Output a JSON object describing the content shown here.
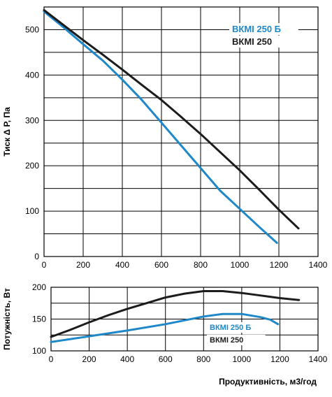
{
  "colors": {
    "blue": "#1e88c8",
    "black": "#1c1c1c"
  },
  "chart_data": [
    {
      "type": "line",
      "ylabel": "Тиск Δ Р, Па",
      "xlabel": "",
      "xlim": [
        0,
        1400
      ],
      "ylim": [
        0,
        550
      ],
      "x_ticks": [
        "0",
        "200",
        "400",
        "600",
        "800",
        "1000",
        "1200",
        "1400"
      ],
      "y_ticks": [
        "0",
        "100",
        "200",
        "300",
        "400",
        "500"
      ],
      "grid": true,
      "legend_position": "top-right",
      "series": [
        {
          "name": "ВКМІ 250 Б",
          "color": "#1e88c8",
          "x": [
            0,
            100,
            200,
            300,
            400,
            500,
            600,
            700,
            800,
            900,
            1000,
            1100,
            1190
          ],
          "y": [
            540,
            505,
            468,
            432,
            390,
            345,
            295,
            245,
            195,
            145,
            105,
            65,
            30
          ]
        },
        {
          "name": "ВКМІ 250",
          "color": "#1c1c1c",
          "x": [
            0,
            100,
            200,
            300,
            400,
            500,
            600,
            700,
            800,
            900,
            1000,
            1100,
            1200,
            1300
          ],
          "y": [
            543,
            510,
            477,
            445,
            412,
            378,
            345,
            308,
            270,
            230,
            190,
            147,
            103,
            62
          ]
        }
      ]
    },
    {
      "type": "line",
      "ylabel": "Потужність, Вт",
      "xlabel": "Продуктивність, м3/год",
      "xlim": [
        0,
        1400
      ],
      "ylim": [
        100,
        200
      ],
      "x_ticks": [
        "0",
        "200",
        "400",
        "600",
        "800",
        "1000",
        "1200",
        "1400"
      ],
      "y_ticks": [
        "100",
        "150",
        "200"
      ],
      "grid": true,
      "legend_position": "bottom-right",
      "series": [
        {
          "name": "ВКМІ 250 Б",
          "color": "#1e88c8",
          "x": [
            0,
            200,
            400,
            600,
            700,
            800,
            900,
            1000,
            1100,
            1150,
            1190
          ],
          "y": [
            114,
            123,
            132,
            142,
            148,
            154,
            158,
            158,
            153,
            149,
            142
          ]
        },
        {
          "name": "ВКМІ 250",
          "color": "#1c1c1c",
          "x": [
            0,
            100,
            200,
            300,
            400,
            500,
            600,
            700,
            800,
            900,
            1000,
            1100,
            1200,
            1300
          ],
          "y": [
            122,
            133,
            145,
            156,
            166,
            175,
            184,
            190,
            194,
            194,
            191,
            187,
            183,
            180
          ]
        }
      ]
    }
  ]
}
